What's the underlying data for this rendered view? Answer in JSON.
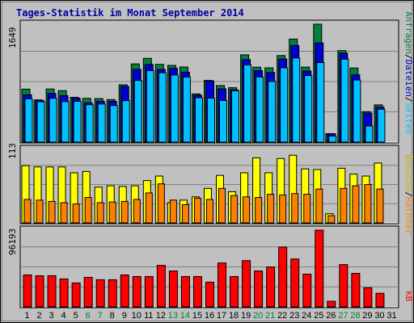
{
  "title": "Tages-Statistik im Monat September 2014",
  "colors": {
    "background": "#c0c0c0",
    "hits": "#008040",
    "files": "#0000d0",
    "pages": "#00c0ff",
    "visits": "#ffff00",
    "sites": "#ff8000",
    "kbytes": "#ff0000",
    "weekend_label": "#008040",
    "weekday_label": "#000000"
  },
  "legend": {
    "hits": "Anfragen",
    "files": "Dateien",
    "pages": "Seiten",
    "visits": "Besuche",
    "sites": "Rechner",
    "kbytes": "kB",
    "sep1": "/",
    "sep2": "/",
    "sep3": "/",
    "sep4": "/"
  },
  "chart_data": {
    "type": "bar",
    "title": "Tages-Statistik im Monat September 2014",
    "categories": [
      "1",
      "2",
      "3",
      "4",
      "5",
      "6",
      "7",
      "8",
      "9",
      "10",
      "11",
      "12",
      "13",
      "14",
      "15",
      "16",
      "17",
      "18",
      "19",
      "20",
      "21",
      "22",
      "23",
      "24",
      "25",
      "26",
      "27",
      "28",
      "29",
      "30",
      "31"
    ],
    "weekend_days": [
      "6",
      "7",
      "13",
      "14",
      "20",
      "21",
      "27",
      "28"
    ],
    "panels": [
      {
        "name": "requests",
        "ymax": 1649,
        "ymax_label": "1649",
        "series": [
          {
            "name": "Anfragen",
            "color": "#008040",
            "values": [
              741,
              591,
              743,
              720,
              627,
              612,
              609,
              595,
              802,
              1094,
              1172,
              1088,
              1073,
              1050,
              674,
              863,
              791,
              761,
              1221,
              1048,
              1039,
              1211,
              1441,
              1049,
              1649,
              118,
              1280,
              1037,
              426,
              521,
              0
            ]
          },
          {
            "name": "Dateien",
            "color": "#0000d0",
            "values": [
              662,
              583,
              681,
              650,
              612,
              551,
              571,
              571,
              780,
              1018,
              1086,
              1016,
              1032,
              978,
              656,
              856,
              745,
              733,
              1154,
              1000,
              974,
              1162,
              1352,
              995,
              1388,
              118,
              1245,
              941,
              406,
              491,
              0
            ]
          },
          {
            "name": "Seiten",
            "color": "#00c0ff",
            "values": [
              606,
              565,
              614,
              567,
              570,
              523,
              533,
              512,
              580,
              862,
              1000,
              970,
              939,
              910,
              621,
              615,
              582,
              718,
              1080,
              911,
              849,
              1040,
              1177,
              931,
              1113,
              86,
              1160,
              868,
              226,
              459,
              0
            ]
          }
        ]
      },
      {
        "name": "visits",
        "ymax": 113,
        "ymax_label": "113",
        "series": [
          {
            "name": "Besuche",
            "color": "#ffff00",
            "values": [
              88,
              86,
              86,
              86,
              77,
              79,
              55,
              57,
              56,
              57,
              65,
              72,
              31,
              35,
              40,
              53,
              73,
              48,
              77,
              100,
              77,
              99,
              104,
              83,
              82,
              14,
              84,
              75,
              72,
              92,
              0
            ]
          },
          {
            "name": "Rechner",
            "color": "#ff8000",
            "values": [
              36,
              35,
              33,
              31,
              29,
              39,
              31,
              32,
              33,
              36,
              46,
              60,
              35,
              28,
              38,
              36,
              53,
              42,
              40,
              39,
              44,
              43,
              45,
              44,
              52,
              11,
              53,
              57,
              59,
              52,
              0
            ]
          }
        ]
      },
      {
        "name": "kbytes",
        "ymax": 96193,
        "ymax_label": "96193",
        "series": [
          {
            "name": "kB",
            "color": "#ff0000",
            "values": [
              40000,
              39000,
              39000,
              35000,
              30000,
              37000,
              34000,
              34000,
              40000,
              38000,
              38000,
              52000,
              45000,
              38000,
              38000,
              31000,
              55000,
              38000,
              58000,
              45000,
              50000,
              75000,
              60000,
              41000,
              96193,
              7000,
              53000,
              42000,
              24000,
              17000,
              0
            ]
          }
        ]
      }
    ]
  }
}
